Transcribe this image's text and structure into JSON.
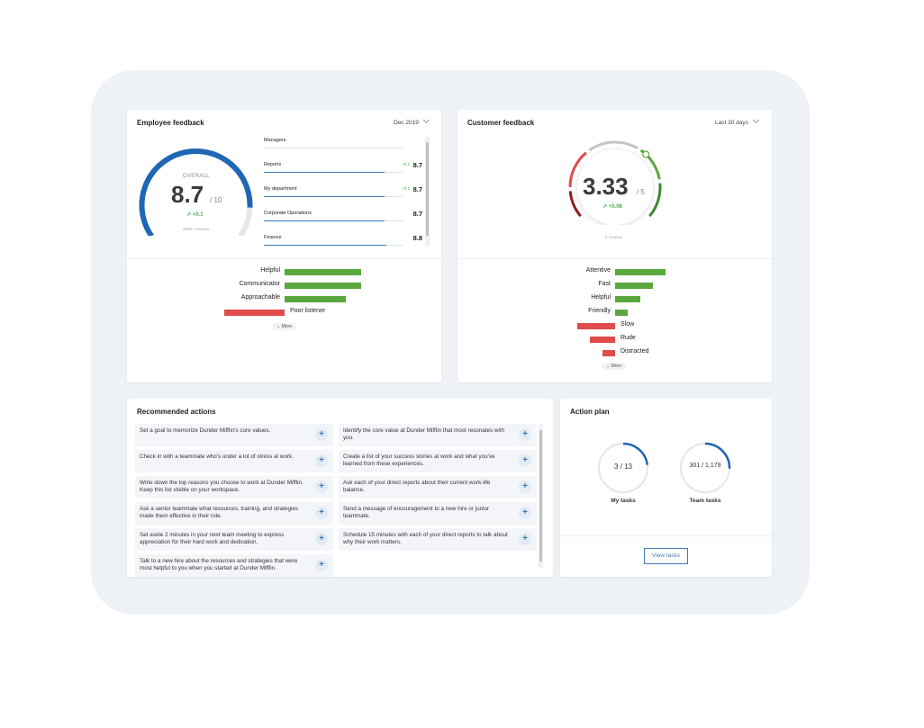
{
  "employee": {
    "title": "Employee feedback",
    "period": "Dec 2019",
    "overall_label": "OVERALL",
    "overall_value": "8.7",
    "overall_denominator": "/ 10",
    "overall_delta": "+0.1",
    "responses": "2000+ reviews",
    "gauge_fraction": 0.87,
    "departments": [
      {
        "name": "Managers",
        "delta": "",
        "value": "",
        "fraction": 0
      },
      {
        "name": "Reports",
        "delta": "+0.1",
        "value": "8.7",
        "fraction": 0.87
      },
      {
        "name": "My department",
        "delta": "+0.1",
        "value": "8.7",
        "fraction": 0.87
      },
      {
        "name": "Corporate Operations",
        "delta": "",
        "value": "8.7",
        "fraction": 0.87
      },
      {
        "name": "Finance",
        "delta": "",
        "value": "8.8",
        "fraction": 0.88
      }
    ],
    "traits": [
      {
        "label": "Helpful",
        "value": 85,
        "sentiment": "positive"
      },
      {
        "label": "Communicator",
        "value": 85,
        "sentiment": "positive"
      },
      {
        "label": "Approachable",
        "value": 68,
        "sentiment": "positive"
      },
      {
        "label": "Poor listener",
        "value": 67,
        "sentiment": "negative"
      }
    ],
    "more_label": "More"
  },
  "customer": {
    "title": "Customer feedback",
    "period": "Last 30 days",
    "score_value": "3.33",
    "score_denominator": "/ 5",
    "score_delta": "+0.08",
    "reviews": "4 reviews",
    "gauge_fraction": 0.666,
    "traits": [
      {
        "label": "Attentive",
        "value": 56,
        "sentiment": "positive"
      },
      {
        "label": "Fast",
        "value": 42,
        "sentiment": "positive"
      },
      {
        "label": "Helpful",
        "value": 28,
        "sentiment": "positive"
      },
      {
        "label": "Friendly",
        "value": 14,
        "sentiment": "positive"
      },
      {
        "label": "Slow",
        "value": 42,
        "sentiment": "negative"
      },
      {
        "label": "Rude",
        "value": 28,
        "sentiment": "negative"
      },
      {
        "label": "Distracted",
        "value": 14,
        "sentiment": "negative"
      }
    ],
    "more_label": "More"
  },
  "recommended": {
    "title": "Recommended actions",
    "left": [
      "Set a goal to memorize Dunder Mifflin's core values.",
      "Check in with a teammate who's under a lot of stress at work.",
      "Write down the top reasons you choose to work at Dunder Mifflin. Keep this list visible on your workspace.",
      "Ask a senior teammate what resources, training, and strategies made them effective in their role.",
      "Set aside 2 minutes in your next team meeting to express appreciation for their hard work and dedication.",
      "Talk to a new hire about the resources and strategies that were most helpful to you when you started at Dunder Mifflin."
    ],
    "right": [
      "Identify the core value at Dunder Mifflin that most resonates with you.",
      "Create a list of your success stories at work and what you've learned from these experiences.",
      "Ask each of your direct reports about their current work-life balance.",
      "Send a message of encouragement to a new hire or junior teammate.",
      "Schedule 15 minutes with each of your direct reports to talk about why their work matters."
    ],
    "add_label": "+"
  },
  "plan": {
    "title": "Action plan",
    "rings": [
      {
        "value": "3 / 13",
        "label": "My tasks",
        "fraction": 0.23
      },
      {
        "value": "301 / 1,179",
        "label": "Team tasks",
        "fraction": 0.255
      }
    ],
    "button": "View tasks"
  },
  "colors": {
    "blue": "#1f66b3",
    "green": "#5aa83d",
    "red": "#e04b4b",
    "dark_red": "#8e1f1f",
    "gray": "#e2e5e8"
  }
}
